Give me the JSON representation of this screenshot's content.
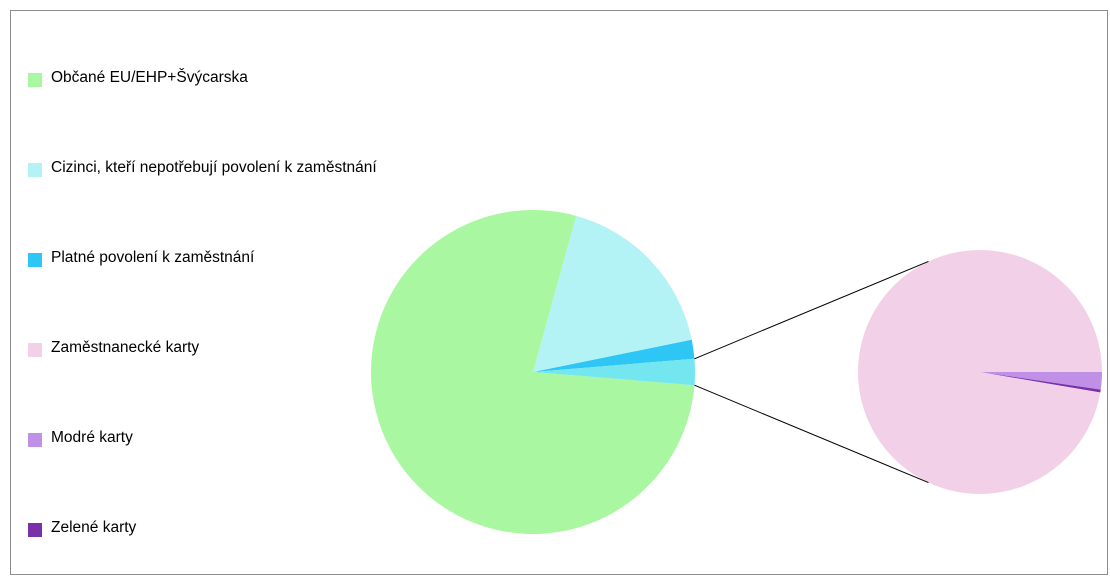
{
  "chart_data": {
    "type": "pie",
    "subtype": "pie-of-pie",
    "title": "",
    "legend_position": "left",
    "slices": [
      {
        "label": "Občané EU/EHP+Švýcarska",
        "value": 78.0,
        "color": "#a9f7a0"
      },
      {
        "label": "Cizinci, kteří nepotřebují povolení k zaměstnání",
        "value": 17.5,
        "color": "#b4f3f5"
      },
      {
        "label": "Platné povolení k zaměstnání",
        "value": 1.9,
        "color": "#2ec6f5"
      },
      {
        "label": "Zaměstnanecké karty",
        "value": 2.53,
        "color": "#f2d1e8"
      },
      {
        "label": "Modré karty",
        "value": 0.06,
        "color": "#c090e6"
      },
      {
        "label": "Zelené karty",
        "value": 0.01,
        "color": "#7a30a8"
      }
    ],
    "main_pie": [
      "Občané EU/EHP+Švýcarska",
      "Cizinci, kteří nepotřebují povolení k zaměstnání",
      "Platné povolení k zaměstnání"
    ],
    "secondary_pie": [
      "Zaměstnanecké karty",
      "Modré karty",
      "Zelené karty"
    ],
    "other_color": "#73e6ef"
  }
}
